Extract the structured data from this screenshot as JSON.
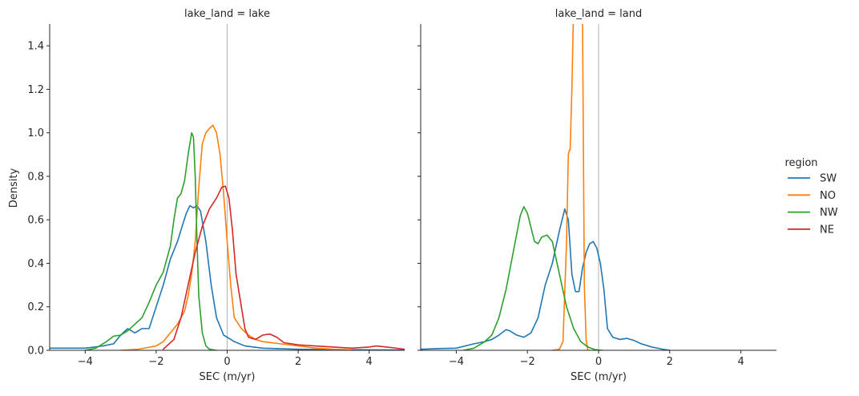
{
  "chart_data": {
    "type": "line",
    "ylabel": "Density",
    "legend": {
      "title": "region",
      "placement": "right",
      "entries": [
        {
          "name": "SW",
          "color": "#1f77b4"
        },
        {
          "name": "NO",
          "color": "#ff7f0e"
        },
        {
          "name": "NW",
          "color": "#2ca02c"
        },
        {
          "name": "NE",
          "color": "#d62728"
        }
      ]
    },
    "xlim": [
      -5,
      5
    ],
    "ylim": [
      0,
      1.5
    ],
    "x_ticks": [
      -4,
      -2,
      0,
      2,
      4
    ],
    "x_tick_labels": [
      "−4",
      "−2",
      "0",
      "2",
      "4"
    ],
    "y_ticks": [
      0.0,
      0.2,
      0.4,
      0.6,
      0.8,
      1.0,
      1.2,
      1.4
    ],
    "y_tick_labels": [
      "0.0",
      "0.2",
      "0.4",
      "0.6",
      "0.8",
      "1.0",
      "1.2",
      "1.4"
    ],
    "reference_line_x": 0,
    "grid": false,
    "panels": [
      {
        "title": "lake_land = lake",
        "xlabel": "SEC (m/yr)",
        "series": [
          {
            "name": "SW",
            "points": [
              [
                -5,
                0.01
              ],
              [
                -4.5,
                0.01
              ],
              [
                -4,
                0.01
              ],
              [
                -3.5,
                0.02
              ],
              [
                -3.2,
                0.03
              ],
              [
                -3,
                0.07
              ],
              [
                -2.8,
                0.1
              ],
              [
                -2.6,
                0.08
              ],
              [
                -2.4,
                0.1
              ],
              [
                -2.2,
                0.1
              ],
              [
                -2,
                0.2
              ],
              [
                -1.8,
                0.3
              ],
              [
                -1.6,
                0.42
              ],
              [
                -1.4,
                0.5
              ],
              [
                -1.25,
                0.58
              ],
              [
                -1.15,
                0.63
              ],
              [
                -1.05,
                0.665
              ],
              [
                -0.95,
                0.655
              ],
              [
                -0.85,
                0.665
              ],
              [
                -0.75,
                0.64
              ],
              [
                -0.6,
                0.5
              ],
              [
                -0.45,
                0.3
              ],
              [
                -0.3,
                0.15
              ],
              [
                -0.1,
                0.07
              ],
              [
                0,
                0.06
              ],
              [
                0.2,
                0.04
              ],
              [
                0.5,
                0.02
              ],
              [
                1,
                0.01
              ],
              [
                2,
                0.005
              ],
              [
                3,
                0.003
              ],
              [
                4,
                0.002
              ],
              [
                5,
                0.001
              ]
            ]
          },
          {
            "name": "NO",
            "points": [
              [
                -3,
                0
              ],
              [
                -2.5,
                0.005
              ],
              [
                -2,
                0.02
              ],
              [
                -1.8,
                0.04
              ],
              [
                -1.6,
                0.08
              ],
              [
                -1.4,
                0.12
              ],
              [
                -1.2,
                0.18
              ],
              [
                -1.1,
                0.25
              ],
              [
                -1,
                0.35
              ],
              [
                -0.9,
                0.5
              ],
              [
                -0.8,
                0.75
              ],
              [
                -0.7,
                0.95
              ],
              [
                -0.6,
                1.0
              ],
              [
                -0.5,
                1.02
              ],
              [
                -0.4,
                1.035
              ],
              [
                -0.3,
                1.0
              ],
              [
                -0.2,
                0.9
              ],
              [
                -0.1,
                0.72
              ],
              [
                0,
                0.5
              ],
              [
                0.1,
                0.3
              ],
              [
                0.2,
                0.15
              ],
              [
                0.4,
                0.1
              ],
              [
                0.6,
                0.07
              ],
              [
                0.8,
                0.05
              ],
              [
                1,
                0.04
              ],
              [
                1.5,
                0.03
              ],
              [
                2,
                0.02
              ],
              [
                2.5,
                0.01
              ],
              [
                3,
                0.005
              ],
              [
                3.5,
                0.002
              ]
            ]
          },
          {
            "name": "NW",
            "points": [
              [
                -4,
                0
              ],
              [
                -3.7,
                0.01
              ],
              [
                -3.4,
                0.04
              ],
              [
                -3.2,
                0.065
              ],
              [
                -3,
                0.07
              ],
              [
                -2.8,
                0.09
              ],
              [
                -2.6,
                0.12
              ],
              [
                -2.4,
                0.15
              ],
              [
                -2.2,
                0.22
              ],
              [
                -2,
                0.3
              ],
              [
                -1.8,
                0.36
              ],
              [
                -1.6,
                0.48
              ],
              [
                -1.5,
                0.6
              ],
              [
                -1.4,
                0.7
              ],
              [
                -1.3,
                0.72
              ],
              [
                -1.2,
                0.78
              ],
              [
                -1.1,
                0.9
              ],
              [
                -1,
                1.0
              ],
              [
                -0.95,
                0.98
              ],
              [
                -0.9,
                0.8
              ],
              [
                -0.85,
                0.5
              ],
              [
                -0.8,
                0.25
              ],
              [
                -0.7,
                0.08
              ],
              [
                -0.6,
                0.02
              ],
              [
                -0.5,
                0.005
              ],
              [
                -0.3,
                0
              ]
            ]
          },
          {
            "name": "NE",
            "points": [
              [
                -1.8,
                0.005
              ],
              [
                -1.5,
                0.05
              ],
              [
                -1.3,
                0.15
              ],
              [
                -1.1,
                0.3
              ],
              [
                -0.9,
                0.45
              ],
              [
                -0.7,
                0.57
              ],
              [
                -0.5,
                0.65
              ],
              [
                -0.3,
                0.7
              ],
              [
                -0.15,
                0.75
              ],
              [
                -0.05,
                0.755
              ],
              [
                0.05,
                0.7
              ],
              [
                0.15,
                0.55
              ],
              [
                0.25,
                0.35
              ],
              [
                0.4,
                0.2
              ],
              [
                0.5,
                0.1
              ],
              [
                0.6,
                0.06
              ],
              [
                0.8,
                0.05
              ],
              [
                1,
                0.07
              ],
              [
                1.2,
                0.075
              ],
              [
                1.4,
                0.06
              ],
              [
                1.6,
                0.035
              ],
              [
                2,
                0.025
              ],
              [
                3,
                0.015
              ],
              [
                3.5,
                0.01
              ],
              [
                4,
                0.015
              ],
              [
                4.2,
                0.02
              ],
              [
                4.5,
                0.015
              ],
              [
                5,
                0.005
              ]
            ]
          }
        ]
      },
      {
        "title": "lake_land = land",
        "xlabel": "SEC (m/yr)",
        "series": [
          {
            "name": "SW",
            "points": [
              [
                -5,
                0.005
              ],
              [
                -4.5,
                0.008
              ],
              [
                -4,
                0.01
              ],
              [
                -3.5,
                0.03
              ],
              [
                -3.2,
                0.04
              ],
              [
                -3,
                0.05
              ],
              [
                -2.8,
                0.07
              ],
              [
                -2.6,
                0.095
              ],
              [
                -2.5,
                0.09
              ],
              [
                -2.3,
                0.07
              ],
              [
                -2.1,
                0.06
              ],
              [
                -1.9,
                0.08
              ],
              [
                -1.7,
                0.15
              ],
              [
                -1.5,
                0.3
              ],
              [
                -1.3,
                0.4
              ],
              [
                -1.1,
                0.55
              ],
              [
                -0.95,
                0.65
              ],
              [
                -0.85,
                0.6
              ],
              [
                -0.75,
                0.35
              ],
              [
                -0.65,
                0.27
              ],
              [
                -0.55,
                0.27
              ],
              [
                -0.45,
                0.38
              ],
              [
                -0.35,
                0.45
              ],
              [
                -0.25,
                0.49
              ],
              [
                -0.15,
                0.5
              ],
              [
                -0.05,
                0.47
              ],
              [
                0.05,
                0.4
              ],
              [
                0.15,
                0.28
              ],
              [
                0.25,
                0.1
              ],
              [
                0.4,
                0.06
              ],
              [
                0.6,
                0.05
              ],
              [
                0.8,
                0.055
              ],
              [
                1,
                0.045
              ],
              [
                1.2,
                0.03
              ],
              [
                1.5,
                0.015
              ],
              [
                1.8,
                0.005
              ],
              [
                2,
                0
              ]
            ]
          },
          {
            "name": "NO",
            "points": [
              [
                -1.3,
                0
              ],
              [
                -1.1,
                0.005
              ],
              [
                -1,
                0.04
              ],
              [
                -0.9,
                0.5
              ],
              [
                -0.85,
                0.9
              ],
              [
                -0.82,
                0.92
              ],
              [
                -0.8,
                0.92
              ],
              [
                -0.75,
                1.2
              ],
              [
                -0.7,
                1.6
              ],
              [
                -0.6,
                1.6
              ],
              [
                -0.5,
                1.6
              ],
              [
                -0.45,
                1.5
              ],
              [
                -0.4,
                0.3
              ],
              [
                -0.35,
                0.05
              ],
              [
                -0.3,
                0
              ]
            ]
          },
          {
            "name": "NW",
            "points": [
              [
                -3.8,
                0
              ],
              [
                -3.5,
                0.01
              ],
              [
                -3.2,
                0.04
              ],
              [
                -3,
                0.07
              ],
              [
                -2.8,
                0.15
              ],
              [
                -2.6,
                0.28
              ],
              [
                -2.4,
                0.45
              ],
              [
                -2.2,
                0.62
              ],
              [
                -2.1,
                0.66
              ],
              [
                -2,
                0.63
              ],
              [
                -1.8,
                0.5
              ],
              [
                -1.7,
                0.49
              ],
              [
                -1.6,
                0.52
              ],
              [
                -1.45,
                0.53
              ],
              [
                -1.3,
                0.5
              ],
              [
                -1.1,
                0.35
              ],
              [
                -0.9,
                0.2
              ],
              [
                -0.7,
                0.1
              ],
              [
                -0.5,
                0.04
              ],
              [
                -0.3,
                0.015
              ],
              [
                -0.1,
                0.003
              ],
              [
                0.1,
                0
              ]
            ]
          }
        ]
      }
    ]
  }
}
